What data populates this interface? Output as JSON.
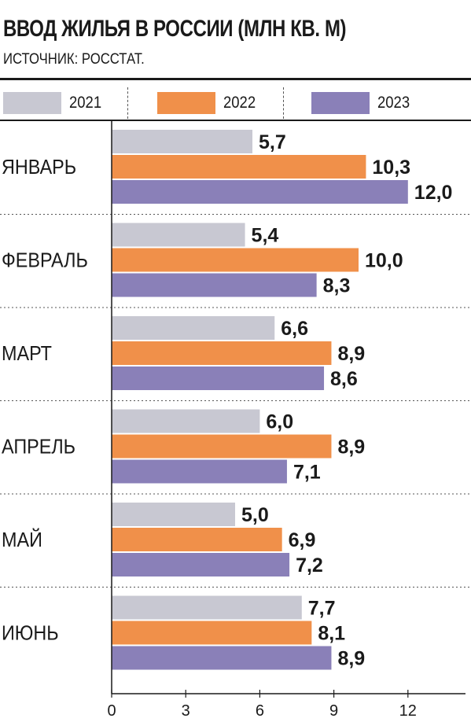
{
  "title": "ВВОД ЖИЛЬЯ В РОССИИ (МЛН КВ. М)",
  "subtitle": "ИСТОЧНИК: РОССТАТ.",
  "colors": {
    "2021": "#c8c8d2",
    "2022": "#f0904a",
    "2023": "#8a80b8"
  },
  "chart_data": {
    "type": "bar",
    "orientation": "horizontal",
    "title": "ВВОД ЖИЛЬЯ В РОССИИ (МЛН КВ. М)",
    "subtitle": "ИСТОЧНИК: РОССТАТ.",
    "categories": [
      "ЯНВАРЬ",
      "ФЕВРАЛЬ",
      "МАРТ",
      "АПРЕЛЬ",
      "МАЙ",
      "ИЮНЬ"
    ],
    "series": [
      {
        "name": "2021",
        "values": [
          5.7,
          5.4,
          6.6,
          6.0,
          5.0,
          7.7
        ],
        "labels": [
          "5,7",
          "5,4",
          "6,6",
          "6,0",
          "5,0",
          "7,7"
        ]
      },
      {
        "name": "2022",
        "values": [
          10.3,
          10.0,
          8.9,
          8.9,
          6.9,
          8.1
        ],
        "labels": [
          "10,3",
          "10,0",
          "8,9",
          "8,9",
          "6,9",
          "8,1"
        ]
      },
      {
        "name": "2023",
        "values": [
          12.0,
          8.3,
          8.6,
          7.1,
          7.2,
          8.9
        ],
        "labels": [
          "12,0",
          "8,3",
          "8,6",
          "7,1",
          "7,2",
          "8,9"
        ]
      }
    ],
    "xticks": [
      "0",
      "3",
      "6",
      "9",
      "12"
    ],
    "xtick_values": [
      0,
      3,
      6,
      9,
      12
    ],
    "xlim": [
      0,
      14
    ],
    "legend": "top",
    "grid": false
  }
}
